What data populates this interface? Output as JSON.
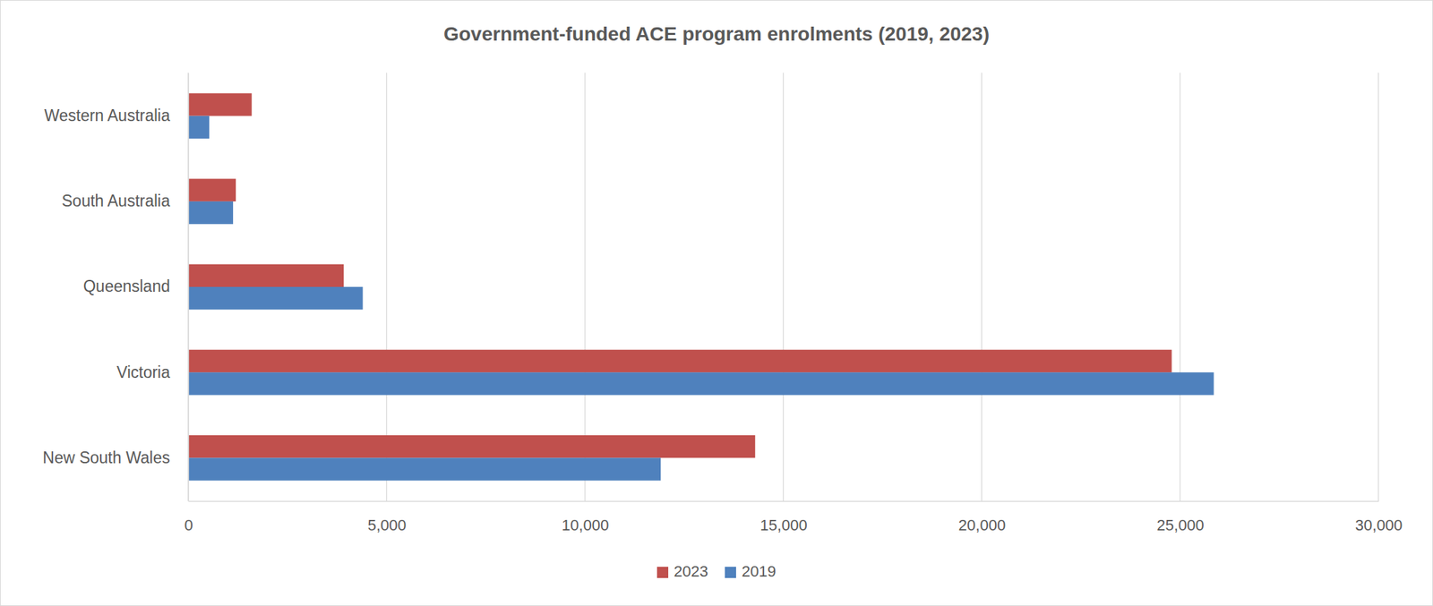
{
  "chart_data": {
    "type": "bar",
    "orientation": "horizontal",
    "title": "Government-funded ACE program enrolments (2019, 2023)",
    "categories": [
      "New South Wales",
      "Victoria",
      "Queensland",
      "South Australia",
      "Western Australia"
    ],
    "series": [
      {
        "name": "2023",
        "color": "#c0504d",
        "values": [
          14290,
          24790,
          3920,
          1200,
          1600
        ]
      },
      {
        "name": "2019",
        "color": "#4f81bd",
        "values": [
          11910,
          25850,
          4400,
          1130,
          530
        ]
      }
    ],
    "xlim": [
      0,
      30000
    ],
    "xticks": [
      0,
      {
        "value": 5000,
        "label": "5,000"
      },
      {
        "value": 10000,
        "label": "10,000"
      },
      {
        "value": 15000,
        "label": "15,000"
      },
      {
        "value": 20000,
        "label": "20,000"
      },
      {
        "value": 25000,
        "label": "25,000"
      },
      {
        "value": 30000,
        "label": "30,000"
      }
    ],
    "grid": true,
    "legend": "bottom"
  }
}
